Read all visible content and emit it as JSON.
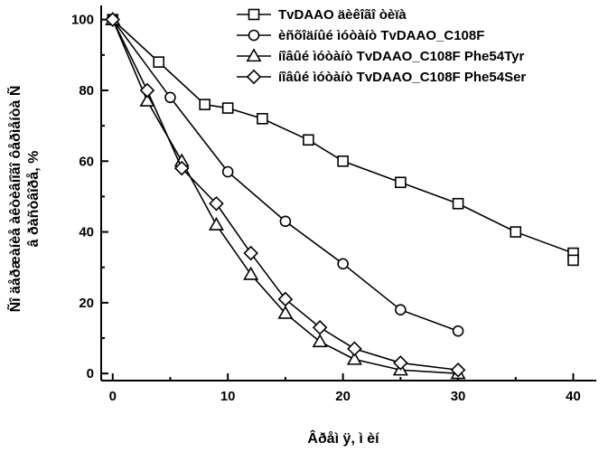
{
  "chart_data": {
    "type": "line",
    "title": "",
    "xlabel": "Âðåì ÿ, ì èí",
    "ylabel_lines": [
      "Ñî äåðæàíèå àêòèâíîãî ôåðìåíòà Ñ",
      "â ðàñòâîðå, %"
    ],
    "xlim": [
      -1,
      42
    ],
    "ylim": [
      -2,
      104
    ],
    "xticks": [
      0,
      10,
      20,
      30,
      40
    ],
    "yticks": [
      0,
      20,
      40,
      60,
      80,
      100
    ],
    "xtick_labels": [
      "0",
      "10",
      "20",
      "30",
      "40"
    ],
    "ytick_labels": [
      "0",
      "20",
      "40",
      "60",
      "80",
      "100"
    ],
    "grid": false,
    "legend_position": "top-right",
    "series": [
      {
        "name": "TvDAAO äèêîãî òèïà",
        "marker": "square",
        "x": [
          0,
          4,
          8,
          10,
          13,
          17,
          20,
          25,
          30,
          35,
          40,
          40
        ],
        "y": [
          100,
          88,
          76,
          75,
          72,
          66,
          60,
          54,
          48,
          40,
          34,
          32
        ]
      },
      {
        "name": "èñõîäíûé ìóòàíò TvDAAO_C108F",
        "marker": "circle",
        "x": [
          0,
          5,
          10,
          15,
          20,
          25,
          30
        ],
        "y": [
          100,
          78,
          57,
          43,
          31,
          18,
          12
        ]
      },
      {
        "name": "íîâûé ìóòàíò TvDAAO_C108F Phe54Tyr",
        "marker": "triangle",
        "x": [
          0,
          3,
          6,
          9,
          12,
          15,
          18,
          21,
          25,
          30
        ],
        "y": [
          100,
          77,
          60,
          42,
          28,
          17,
          9,
          4,
          1,
          0
        ]
      },
      {
        "name": "íîâûé ìóòàíò TvDAAO_C108F Phe54Ser",
        "marker": "diamond",
        "x": [
          0,
          3,
          6,
          9,
          12,
          15,
          18,
          21,
          25,
          30
        ],
        "y": [
          100,
          80,
          58,
          48,
          34,
          21,
          13,
          7,
          3,
          1
        ]
      }
    ]
  }
}
